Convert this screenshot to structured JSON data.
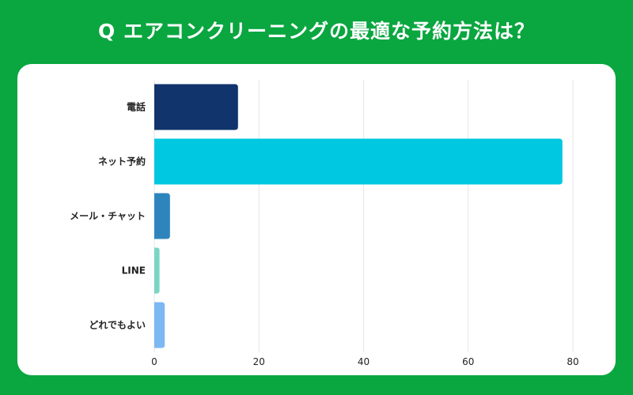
{
  "title": "Q エアコンクリーニングの最適な予約方法は？",
  "colors": {
    "background": "#0aa640",
    "card": "#ffffff",
    "grid": "#e6e6e6",
    "text": "#222222"
  },
  "chart_data": {
    "type": "bar",
    "orientation": "horizontal",
    "title": "Q エアコンクリーニングの最適な予約方法は？",
    "categories": [
      "電話",
      "ネット予約",
      "メール・チャット",
      "LINE",
      "どれでもよい"
    ],
    "values": [
      16,
      78,
      3,
      1,
      2
    ],
    "bar_colors": [
      "#10346b",
      "#00c8e0",
      "#2e85bd",
      "#7ad6c4",
      "#7cb8f2"
    ],
    "xticks": [
      0,
      20,
      40,
      60,
      80
    ],
    "xlim": [
      0,
      80
    ],
    "grid": true,
    "legend": false,
    "xlabel": "",
    "ylabel": ""
  }
}
